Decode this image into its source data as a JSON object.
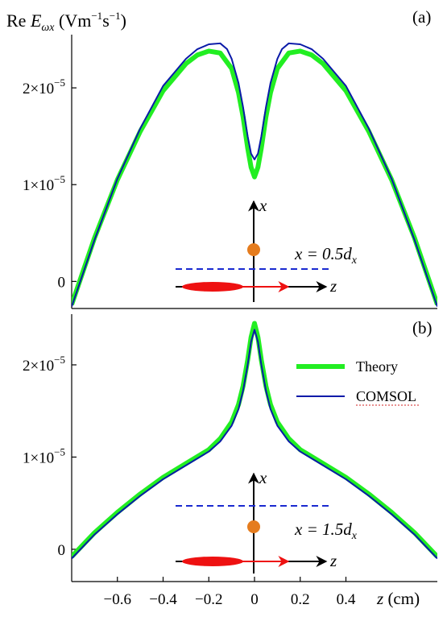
{
  "figure": {
    "ylabel_prefix": "Re ",
    "ylabel_symbol": "E",
    "ylabel_sub": "ωx",
    "ylabel_units": " (Vm",
    "ylabel_exp1": "−1",
    "ylabel_s": "s",
    "ylabel_exp2": "−1",
    "ylabel_close": ")",
    "xlabel_symbol": "z",
    "xlabel_units": " (cm)"
  },
  "legend": {
    "theory": "Theory",
    "comsol": "COMSOL"
  },
  "colors": {
    "theory": "#22ee22",
    "comsol": "#0a1aa8",
    "beam": "#ee1111",
    "particle": "#e57c1e",
    "dashed": "#1a2ad0"
  },
  "chart_data": [
    {
      "type": "line",
      "panel_label": "(a)",
      "xlim": [
        -0.8,
        0.8
      ],
      "ylim": [
        -2.8e-06,
        2.55e-05
      ],
      "x_ticks": [],
      "y_ticks": [
        {
          "value": 0,
          "mant": "0",
          "exp": ""
        },
        {
          "value": 1e-05,
          "mant": "1×10",
          "exp": "−5"
        },
        {
          "value": 2e-05,
          "mant": "2×10",
          "exp": "−5"
        }
      ],
      "inset_label": "x = 0.5d",
      "inset_sub": "x",
      "inset_axis_x": "x",
      "inset_axis_z": "z",
      "series": [
        {
          "name": "Theory",
          "x": [
            -0.8,
            -0.7,
            -0.6,
            -0.5,
            -0.4,
            -0.3,
            -0.25,
            -0.2,
            -0.15,
            -0.1,
            -0.07,
            -0.05,
            -0.03,
            -0.015,
            0,
            0.015,
            0.03,
            0.05,
            0.07,
            0.1,
            0.15,
            0.2,
            0.25,
            0.3,
            0.4,
            0.5,
            0.6,
            0.7,
            0.8
          ],
          "y": [
            -2.4e-06,
            4.5e-06,
            1.05e-05,
            1.55e-05,
            1.97e-05,
            2.25e-05,
            2.34e-05,
            2.38e-05,
            2.36e-05,
            2.2e-05,
            1.95e-05,
            1.7e-05,
            1.38e-05,
            1.18e-05,
            1.08e-05,
            1.18e-05,
            1.38e-05,
            1.7e-05,
            1.95e-05,
            2.2e-05,
            2.36e-05,
            2.38e-05,
            2.34e-05,
            2.25e-05,
            1.97e-05,
            1.55e-05,
            1.05e-05,
            4.5e-06,
            -2.4e-06
          ]
        },
        {
          "name": "COMSOL",
          "x": [
            -0.8,
            -0.7,
            -0.6,
            -0.5,
            -0.4,
            -0.3,
            -0.25,
            -0.2,
            -0.15,
            -0.12,
            -0.1,
            -0.07,
            -0.05,
            -0.03,
            -0.015,
            0,
            0.015,
            0.03,
            0.05,
            0.07,
            0.1,
            0.12,
            0.15,
            0.2,
            0.25,
            0.3,
            0.4,
            0.5,
            0.6,
            0.7,
            0.8
          ],
          "y": [
            -2.6e-06,
            4.3e-06,
            1.06e-05,
            1.58e-05,
            2.02e-05,
            2.3e-05,
            2.4e-05,
            2.45e-05,
            2.46e-05,
            2.4e-05,
            2.3e-05,
            2.05e-05,
            1.8e-05,
            1.5e-05,
            1.32e-05,
            1.26e-05,
            1.32e-05,
            1.5e-05,
            1.8e-05,
            2.05e-05,
            2.3e-05,
            2.4e-05,
            2.46e-05,
            2.45e-05,
            2.4e-05,
            2.3e-05,
            2.02e-05,
            1.58e-05,
            1.06e-05,
            4.3e-06,
            -2.6e-06
          ]
        }
      ]
    },
    {
      "type": "line",
      "panel_label": "(b)",
      "xlim": [
        -0.8,
        0.8
      ],
      "ylim": [
        -3.5e-06,
        2.55e-05
      ],
      "x_ticks": [
        {
          "value": -0.6,
          "label": "−0.6"
        },
        {
          "value": -0.4,
          "label": "−0.4"
        },
        {
          "value": -0.2,
          "label": "−0.2"
        },
        {
          "value": 0,
          "label": "0"
        },
        {
          "value": 0.2,
          "label": "0.2"
        },
        {
          "value": 0.4,
          "label": "0.4"
        }
      ],
      "y_ticks": [
        {
          "value": 0,
          "mant": "0",
          "exp": ""
        },
        {
          "value": 1e-05,
          "mant": "1×10",
          "exp": "−5"
        },
        {
          "value": 2e-05,
          "mant": "2×10",
          "exp": "−5"
        }
      ],
      "inset_label": "x = 1.5d",
      "inset_sub": "x",
      "inset_axis_x": "x",
      "inset_axis_z": "z",
      "series": [
        {
          "name": "Theory",
          "x": [
            -0.8,
            -0.7,
            -0.6,
            -0.5,
            -0.4,
            -0.3,
            -0.2,
            -0.15,
            -0.1,
            -0.07,
            -0.05,
            -0.03,
            -0.015,
            0,
            0.015,
            0.03,
            0.05,
            0.07,
            0.1,
            0.15,
            0.2,
            0.3,
            0.4,
            0.5,
            0.6,
            0.7,
            0.8
          ],
          "y": [
            -8e-07,
            1.8e-06,
            4e-06,
            6e-06,
            7.8e-06,
            9.3e-06,
            1.08e-05,
            1.2e-05,
            1.38e-05,
            1.57e-05,
            1.77e-05,
            2.05e-05,
            2.3e-05,
            2.45e-05,
            2.3e-05,
            2.05e-05,
            1.77e-05,
            1.57e-05,
            1.38e-05,
            1.2e-05,
            1.08e-05,
            9.3e-06,
            7.8e-06,
            6e-06,
            4e-06,
            1.8e-06,
            -8e-07
          ]
        },
        {
          "name": "COMSOL",
          "x": [
            -0.8,
            -0.7,
            -0.6,
            -0.5,
            -0.4,
            -0.3,
            -0.2,
            -0.15,
            -0.1,
            -0.07,
            -0.05,
            -0.03,
            -0.015,
            0,
            0.015,
            0.03,
            0.05,
            0.07,
            0.1,
            0.15,
            0.2,
            0.3,
            0.4,
            0.5,
            0.6,
            0.7,
            0.8
          ],
          "y": [
            -1e-06,
            1.6e-06,
            3.8e-06,
            5.8e-06,
            7.6e-06,
            9.1e-06,
            1.06e-05,
            1.17e-05,
            1.34e-05,
            1.52e-05,
            1.72e-05,
            2e-05,
            2.25e-05,
            2.38e-05,
            2.25e-05,
            2e-05,
            1.72e-05,
            1.52e-05,
            1.34e-05,
            1.17e-05,
            1.06e-05,
            9.1e-06,
            7.6e-06,
            5.8e-06,
            3.8e-06,
            1.6e-06,
            -1e-06
          ]
        }
      ]
    }
  ]
}
